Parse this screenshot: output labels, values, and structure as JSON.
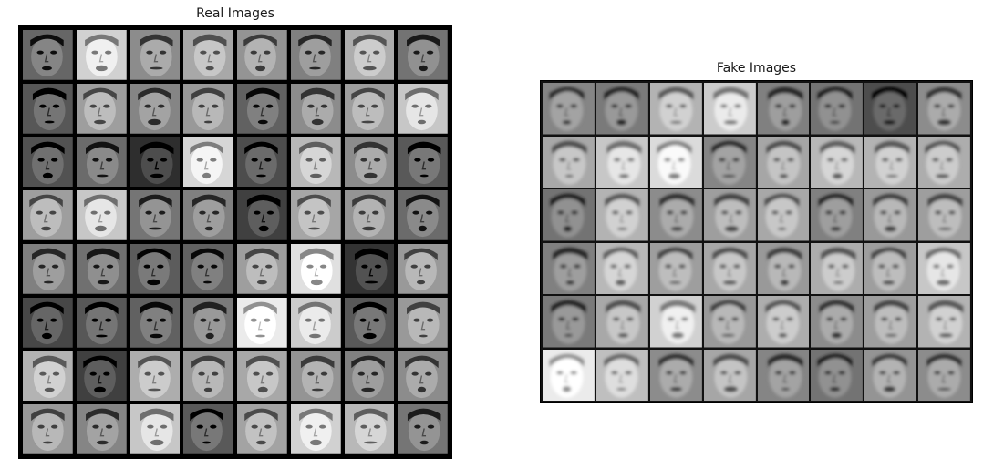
{
  "real_panel": {
    "title": "Real Images",
    "rows": 8,
    "cols": 8,
    "frame_color": "#000000",
    "tiles": [
      [
        0.4,
        0.82,
        0.55,
        0.66,
        0.58,
        0.5,
        0.68,
        0.45
      ],
      [
        0.34,
        0.62,
        0.52,
        0.6,
        0.38,
        0.55,
        0.62,
        0.78
      ],
      [
        0.32,
        0.42,
        0.18,
        0.84,
        0.3,
        0.72,
        0.55,
        0.35
      ],
      [
        0.62,
        0.78,
        0.46,
        0.5,
        0.25,
        0.65,
        0.58,
        0.42
      ],
      [
        0.5,
        0.44,
        0.36,
        0.38,
        0.62,
        0.88,
        0.2,
        0.6
      ],
      [
        0.28,
        0.34,
        0.38,
        0.48,
        0.92,
        0.8,
        0.35,
        0.6
      ],
      [
        0.7,
        0.25,
        0.68,
        0.6,
        0.66,
        0.58,
        0.5,
        0.55
      ],
      [
        0.6,
        0.52,
        0.78,
        0.35,
        0.64,
        0.82,
        0.72,
        0.46
      ]
    ]
  },
  "fake_panel": {
    "title": "Fake Images",
    "rows": 6,
    "cols": 8,
    "frame_color": "#000000",
    "tiles": [
      [
        0.52,
        0.48,
        0.7,
        0.8,
        0.5,
        0.45,
        0.3,
        0.55
      ],
      [
        0.66,
        0.78,
        0.86,
        0.52,
        0.65,
        0.72,
        0.7,
        0.68
      ],
      [
        0.45,
        0.7,
        0.55,
        0.62,
        0.66,
        0.5,
        0.6,
        0.62
      ],
      [
        0.5,
        0.72,
        0.62,
        0.66,
        0.6,
        0.68,
        0.62,
        0.78
      ],
      [
        0.48,
        0.66,
        0.82,
        0.6,
        0.68,
        0.55,
        0.62,
        0.7
      ],
      [
        0.92,
        0.75,
        0.55,
        0.65,
        0.52,
        0.45,
        0.58,
        0.55
      ]
    ]
  }
}
